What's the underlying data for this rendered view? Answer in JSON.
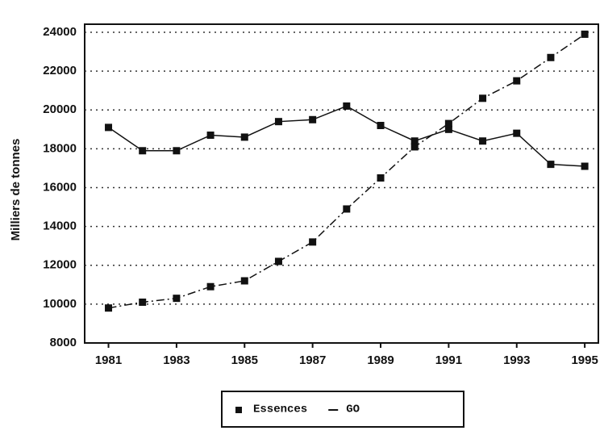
{
  "chart_data": {
    "type": "line",
    "y_label": "Milliers de tonnes",
    "x": [
      1981,
      1982,
      1983,
      1984,
      1985,
      1986,
      1987,
      1988,
      1989,
      1990,
      1991,
      1992,
      1993,
      1994,
      1995
    ],
    "xlim": [
      1980.3,
      1995.4
    ],
    "xticks": [
      1981,
      1983,
      1985,
      1987,
      1989,
      1991,
      1993,
      1995
    ],
    "ylim": [
      8000,
      24000
    ],
    "yticks": [
      8000,
      10000,
      12000,
      14000,
      16000,
      18000,
      20000,
      22000,
      24000
    ],
    "grid": true,
    "series": [
      {
        "name": "Essences",
        "color": "#111111",
        "dash": "solid",
        "values": [
          19100,
          17900,
          17900,
          18700,
          18600,
          19400,
          19500,
          20200,
          19200,
          18400,
          19000,
          18400,
          18800,
          17200,
          17100
        ]
      },
      {
        "name": "GO",
        "color": "#111111",
        "dash": "dashed",
        "values": [
          9800,
          10100,
          10300,
          10900,
          11200,
          12200,
          13200,
          14900,
          16500,
          18100,
          19300,
          20600,
          21500,
          22700,
          23900
        ]
      }
    ]
  }
}
